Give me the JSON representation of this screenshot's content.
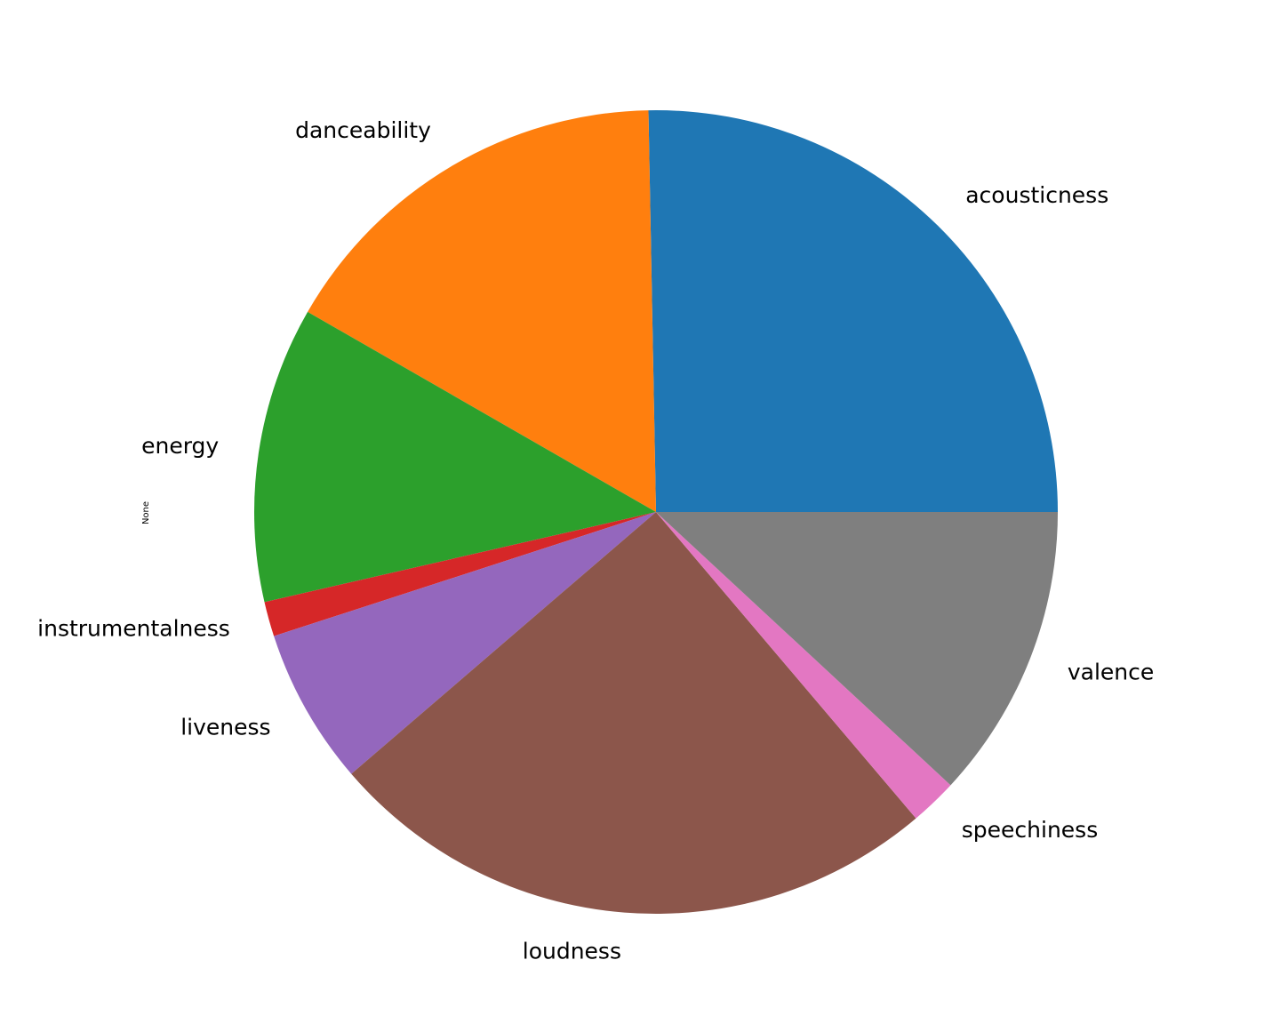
{
  "chart_data": {
    "type": "pie",
    "ylabel": "None",
    "start_angle_deg": 0,
    "direction": "counterclockwise",
    "slices": [
      {
        "label": "acousticness",
        "value": 0.253,
        "color": "#1f77b4"
      },
      {
        "label": "danceability",
        "value": 0.164,
        "color": "#ff7f0e"
      },
      {
        "label": "energy",
        "value": 0.119,
        "color": "#2ca02c"
      },
      {
        "label": "instrumentalness",
        "value": 0.014,
        "color": "#d62728"
      },
      {
        "label": "liveness",
        "value": 0.063,
        "color": "#9467bd"
      },
      {
        "label": "loudness",
        "value": 0.249,
        "color": "#8c564b"
      },
      {
        "label": "speechiness",
        "value": 0.019,
        "color": "#e377c2"
      },
      {
        "label": "valence",
        "value": 0.119,
        "color": "#7f7f7f"
      }
    ]
  }
}
